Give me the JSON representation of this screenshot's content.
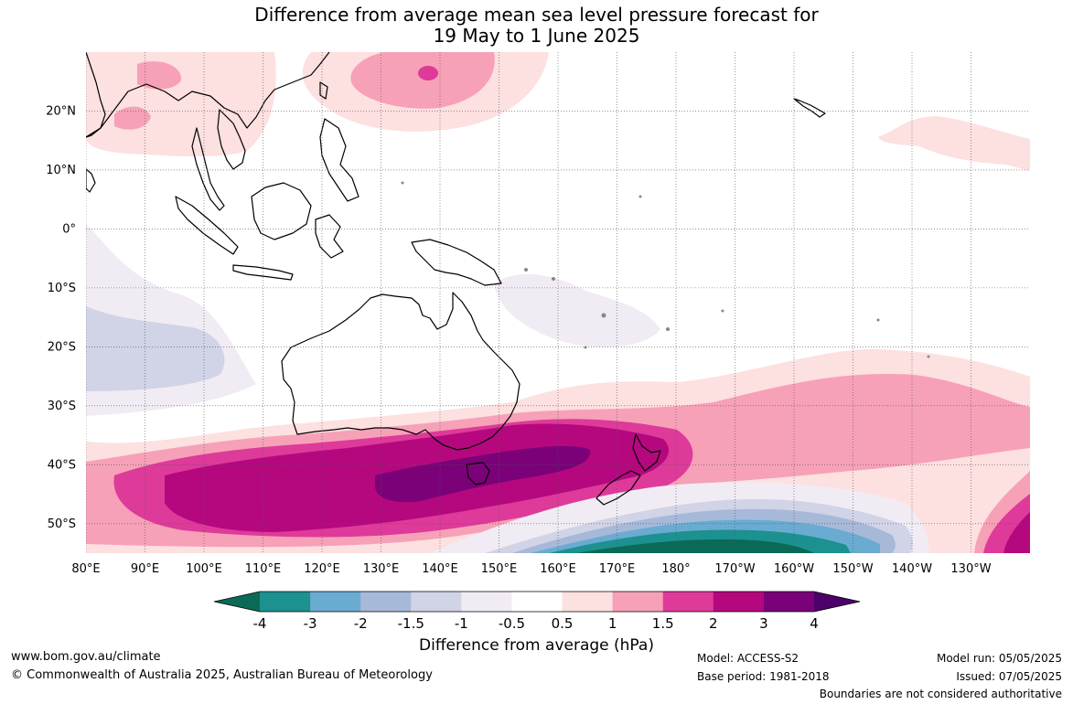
{
  "title": {
    "line1": "Difference from average mean sea level pressure forecast for",
    "line2": "19 May to 1 June 2025"
  },
  "map": {
    "lat_labels": [
      "20°N",
      "10°N",
      "0°",
      "10°S",
      "20°S",
      "30°S",
      "40°S",
      "50°S"
    ],
    "lon_labels": [
      "80°E",
      "90°E",
      "100°E",
      "110°E",
      "120°E",
      "130°E",
      "140°E",
      "150°E",
      "160°E",
      "170°E",
      "180°",
      "170°W",
      "160°W",
      "150°W",
      "140°W",
      "130°W"
    ],
    "lat_values": [
      20,
      10,
      0,
      -10,
      -20,
      -30,
      -40,
      -50
    ],
    "lon_values": [
      80,
      90,
      100,
      110,
      120,
      130,
      140,
      150,
      160,
      170,
      180,
      190,
      200,
      210,
      220,
      230
    ],
    "extent": {
      "lon": [
        80,
        240
      ],
      "lat": [
        -55,
        30
      ]
    },
    "gridlines": "dotted"
  },
  "colorbar": {
    "title": "Difference from average (hPa)",
    "tick_labels": [
      "-4",
      "-3",
      "-2",
      "-1.5",
      "-1",
      "-0.5",
      "0.5",
      "1",
      "1.5",
      "2",
      "3",
      "4"
    ],
    "colors": [
      "#0a6a56",
      "#1c9190",
      "#6aabd2",
      "#a7b9d9",
      "#d1d3e6",
      "#f1ebf4",
      "#ffffff",
      "#fde0e0",
      "#f6a1b8",
      "#de3a9a",
      "#b5087f",
      "#7a0178",
      "#4d0069"
    ]
  },
  "footer": {
    "website": "www.bom.gov.au/climate",
    "copyright": "© Commonwealth of Australia 2025, Australian Bureau of Meteorology",
    "model": "Model: ACCESS-S2",
    "base_period": "Base period: 1981-2018",
    "model_run": "Model run: 05/05/2025",
    "issued": "Issued: 07/05/2025",
    "disclaimer": "Boundaries are not considered authoritative"
  }
}
